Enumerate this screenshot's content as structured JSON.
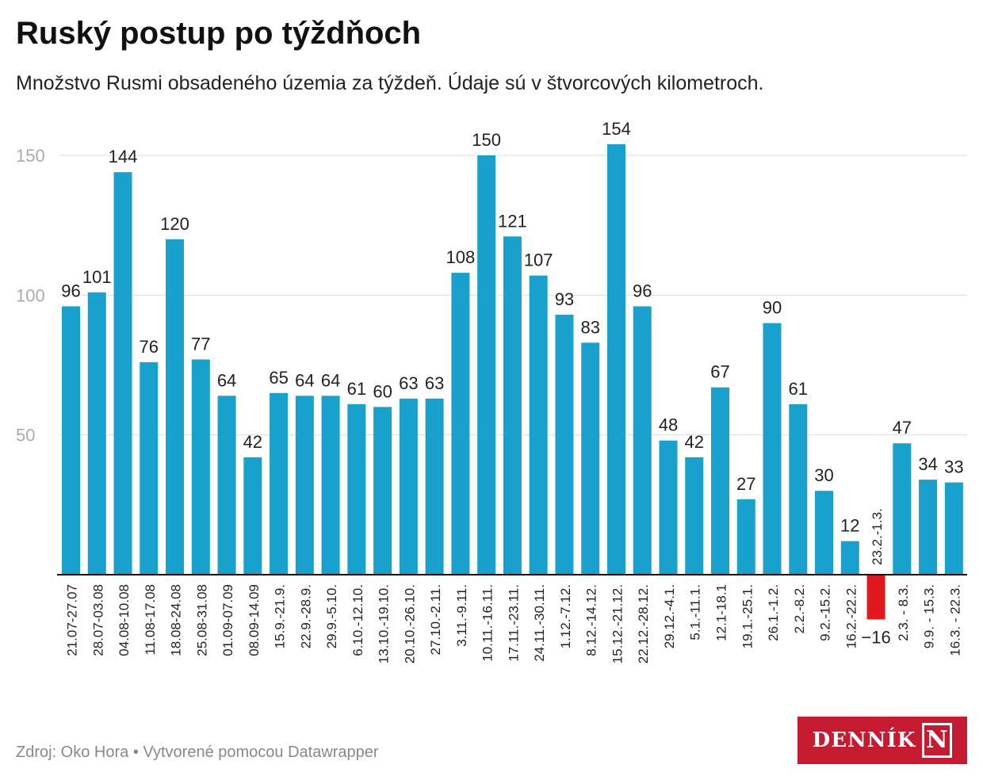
{
  "chart_data": {
    "type": "bar",
    "title": "Ruský postup po týždňoch",
    "subtitle": "Množstvo Rusmi obsadeného územia za týždeň. Údaje sú v štvorcových kilometroch.",
    "xlabel": "",
    "ylabel": "",
    "ylim": [
      -16,
      160
    ],
    "yticks": [
      50,
      100,
      150
    ],
    "grid": true,
    "categories": [
      "21.07-27.07",
      "28.07-03.08",
      "04.08-10.08",
      "11.08-17.08",
      "18.08-24.08",
      "25.08-31.08",
      "01.09-07.09",
      "08.09-14.09",
      "15.9.-21.9.",
      "22.9.-28.9.",
      "29.9.-5.10.",
      "6.10.-12.10.",
      "13.10.-19.10.",
      "20.10.-26.10.",
      "27.10.-2.11.",
      "3.11.-9.11.",
      "10.11.-16.11.",
      "17.11.-23.11.",
      "24.11.-30.11.",
      "1.12.-7.12.",
      "8.12.-14.12.",
      "15.12.-21.12.",
      "22.12.-28.12.",
      "29.12.-4.1.",
      "5.1.-11.1.",
      "12.1-18.1",
      "19.1.-25.1.",
      "26.1.-1.2.",
      "2.2.-8.2.",
      "9.2.-15.2.",
      "16.2.-22.2.",
      "23.2.-1.3.",
      "2.3. - 8.3.",
      "9.9. - 15.3.",
      "16.3. - 22.3."
    ],
    "values": [
      96,
      101,
      144,
      76,
      120,
      77,
      64,
      42,
      65,
      64,
      64,
      61,
      60,
      63,
      63,
      108,
      150,
      121,
      107,
      93,
      83,
      154,
      96,
      48,
      42,
      67,
      27,
      90,
      61,
      30,
      12,
      -16,
      47,
      34,
      33
    ],
    "data_labels": [
      "96",
      "101",
      "144",
      "76",
      "120",
      "77",
      "64",
      "42",
      "65",
      "64",
      "64",
      "61",
      "60",
      "63",
      "63",
      "108",
      "150",
      "121",
      "107",
      "93",
      "83",
      "154",
      "96",
      "48",
      "42",
      "67",
      "27",
      "90",
      "61",
      "30",
      "12",
      "−16",
      "47",
      "34",
      "33"
    ],
    "colors": {
      "positive": "#18a1cd",
      "negative": "#e0191e",
      "grid": "#dddddd",
      "axis": "#111111"
    }
  },
  "footer": "Zdroj: Oko Hora • Vytvorené pomocou Datawrapper",
  "logo": {
    "text": "DENNÍK",
    "mark": "N"
  }
}
